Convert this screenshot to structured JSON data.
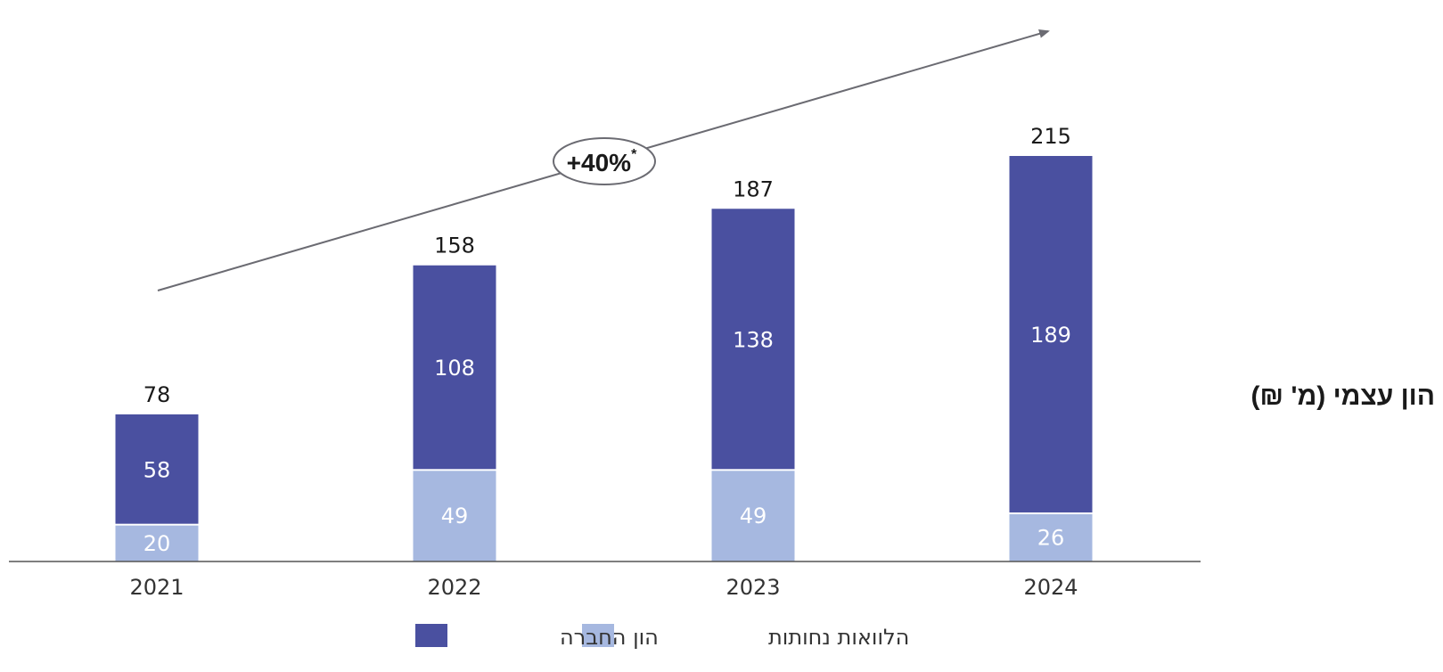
{
  "chart_data": {
    "type": "bar",
    "stacked": true,
    "title": "הון עצמי (מ' ₪)",
    "categories": [
      "2021",
      "2022",
      "2023",
      "2024"
    ],
    "series": [
      {
        "name": "הלוואות נחותות",
        "values": [
          20,
          49,
          49,
          26
        ],
        "color": "#a6b8e0"
      },
      {
        "name": "הון החברה",
        "values": [
          58,
          108,
          138,
          189
        ],
        "color": "#4a50a0"
      }
    ],
    "totals": [
      78,
      158,
      187,
      215
    ],
    "ylim": [
      0,
      215
    ],
    "grid": false,
    "legend": "bottom",
    "growth_label": "+40%",
    "growth_mark": "*"
  }
}
